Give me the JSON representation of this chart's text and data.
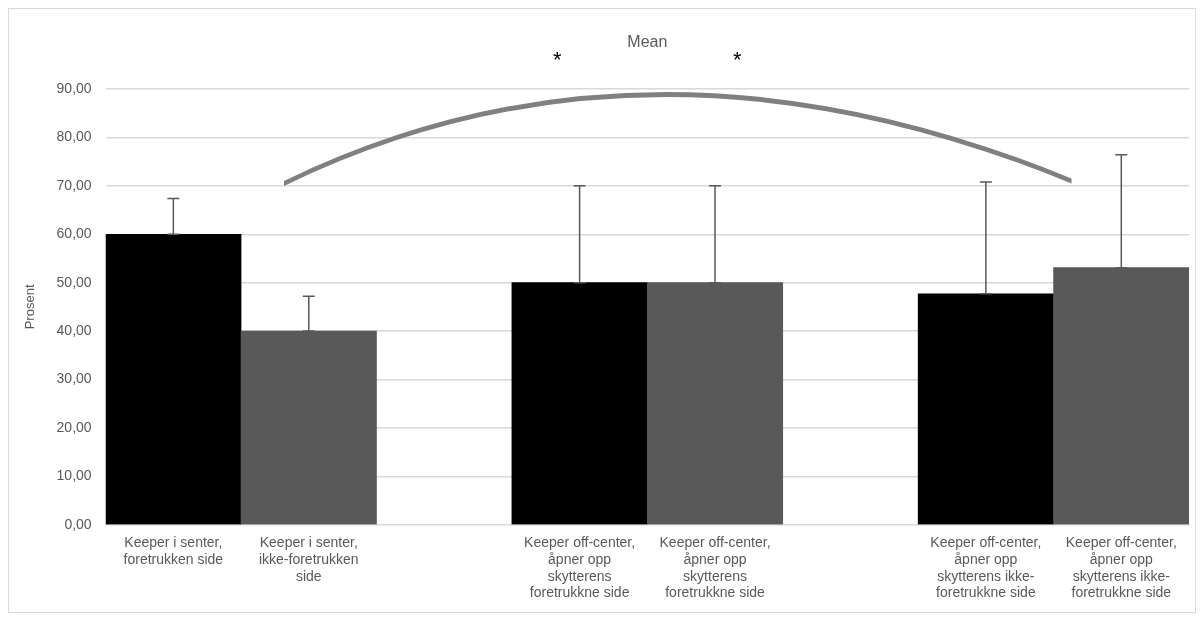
{
  "chart_data": {
    "type": "bar",
    "ylabel": "Prosent",
    "categories": [
      "Keeper i senter, foretrukken side",
      "Keeper i senter, ikke-foretrukken side",
      null,
      "Keeper off-center, åpner opp skytterens foretrukkne side",
      "Keeper off-center, åpner opp skytterens foretrukkne side",
      null,
      "Keeper off-center, åpner opp skytterens ikke-foretrukkne side",
      "Keeper off-center, åpner opp skytterens ikke-foretrukkne side"
    ],
    "values": [
      60,
      40,
      null,
      50,
      50,
      null,
      47.7,
      53.1
    ],
    "colors": [
      "#000000",
      "#595959",
      "#000000",
      "#000000",
      "#595959",
      "#000000",
      "#000000",
      "#595959"
    ],
    "errors": [
      [
        60,
        67.4
      ],
      [
        40,
        47.2
      ],
      null,
      [
        50,
        70
      ],
      [
        50,
        70
      ],
      null,
      [
        47.7,
        70.8
      ],
      [
        53.1,
        76.4
      ]
    ],
    "ylim": [
      0,
      90
    ],
    "yticks": [
      {
        "value": 0,
        "label": "0,00"
      },
      {
        "value": 10,
        "label": "10,00"
      },
      {
        "value": 20,
        "label": "20,00"
      },
      {
        "value": 30,
        "label": "30,00"
      },
      {
        "value": 40,
        "label": "40,00"
      },
      {
        "value": 50,
        "label": "50,00"
      },
      {
        "value": 60,
        "label": "60,00"
      },
      {
        "value": 70,
        "label": "70,00"
      },
      {
        "value": 80,
        "label": "80,00"
      },
      {
        "value": 90,
        "label": "90,00"
      }
    ],
    "grid": "y",
    "legend": false,
    "annotations": [
      "Mean",
      "*",
      "*"
    ]
  }
}
